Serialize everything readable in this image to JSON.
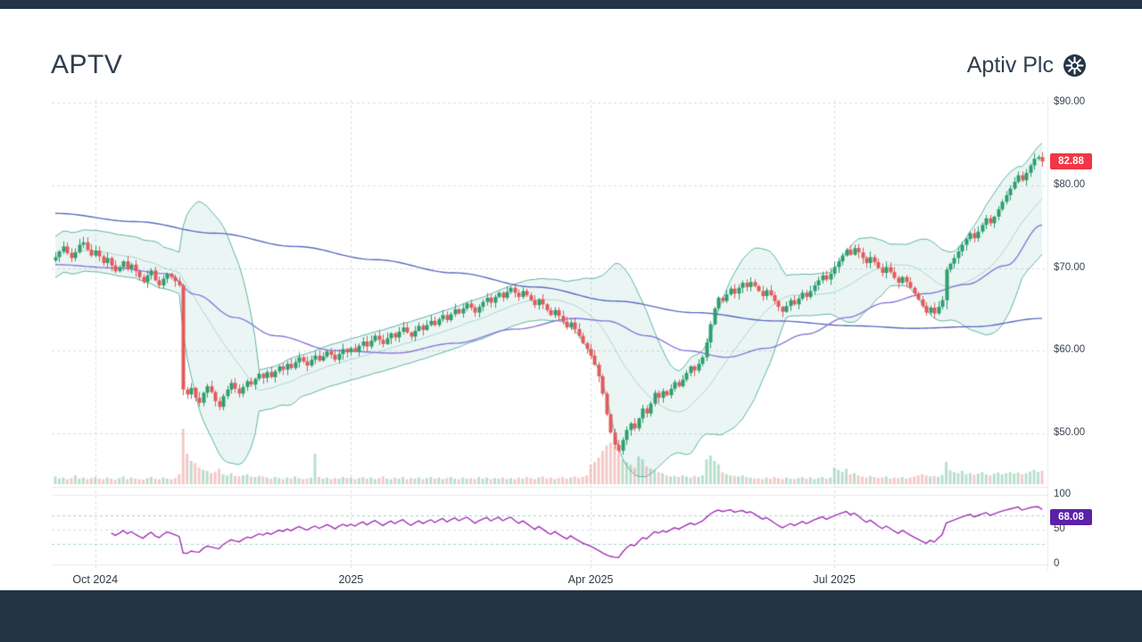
{
  "page": {
    "background": "#ffffff",
    "frame_color": "#243447"
  },
  "header": {
    "ticker": "APTV",
    "company": "Aptiv Plc",
    "logo_icon": "wheel-gear-icon"
  },
  "chart_data": {
    "type": "candlestick",
    "title": "APTV daily candlestick chart with Bollinger Bands, moving averages, volume and RSI",
    "x_axis": {
      "tick_labels": [
        "Oct 2024",
        "2025",
        "Apr 2025",
        "Jul 2025"
      ],
      "tick_indices": [
        10,
        74,
        134,
        195
      ]
    },
    "price_axis": {
      "tick_labels": [
        "$90.00",
        "$80.00",
        "$70.00",
        "$60.00",
        "$50.00"
      ],
      "tick_values": [
        90,
        80,
        70,
        60,
        50
      ],
      "range": [
        46,
        92
      ]
    },
    "rsi_axis": {
      "tick_labels": [
        "100",
        "50",
        "0"
      ],
      "tick_values": [
        100,
        50,
        0
      ]
    },
    "last_price": 82.88,
    "last_price_label": "82.88",
    "rsi_value": 68.08,
    "rsi_label": "68.08",
    "rsi_period": 14,
    "bollinger": {
      "period": 20,
      "stddev": 2
    },
    "closes": [
      71.3,
      72.0,
      72.6,
      71.8,
      71.2,
      71.9,
      72.8,
      73.1,
      72.2,
      71.5,
      72.1,
      71.4,
      70.6,
      71.2,
      70.3,
      69.6,
      70.1,
      70.8,
      69.9,
      70.4,
      69.6,
      68.9,
      68.3,
      69.1,
      69.7,
      68.5,
      67.9,
      68.7,
      69.3,
      68.9,
      68.4,
      67.9,
      55.3,
      54.7,
      55.5,
      54.3,
      53.7,
      54.9,
      55.7,
      55.0,
      53.9,
      53.2,
      54.5,
      55.3,
      56.1,
      55.4,
      54.8,
      55.6,
      56.3,
      55.9,
      56.6,
      57.2,
      56.7,
      57.4,
      56.8,
      57.5,
      58.1,
      57.7,
      58.4,
      57.9,
      58.6,
      59.2,
      58.7,
      58.2,
      58.9,
      59.4,
      58.8,
      59.3,
      59.9,
      59.5,
      58.9,
      59.6,
      60.2,
      59.8,
      60.3,
      59.9,
      60.6,
      61.1,
      60.5,
      61.2,
      61.8,
      61.3,
      60.8,
      61.5,
      62.1,
      61.6,
      62.3,
      62.8,
      62.2,
      61.7,
      62.4,
      63.0,
      62.5,
      63.1,
      63.6,
      63.1,
      63.8,
      64.3,
      63.7,
      64.4,
      65.0,
      64.5,
      65.1,
      65.7,
      65.2,
      64.6,
      65.3,
      65.9,
      66.4,
      65.8,
      66.5,
      67.0,
      66.4,
      67.1,
      67.6,
      67.0,
      66.5,
      67.2,
      66.7,
      66.1,
      65.5,
      66.2,
      65.6,
      64.9,
      64.3,
      64.9,
      64.2,
      63.5,
      62.8,
      63.4,
      62.6,
      61.8,
      60.9,
      60.2,
      59.4,
      58.3,
      56.9,
      54.8,
      52.3,
      50.1,
      48.6,
      47.9,
      49.2,
      50.4,
      51.2,
      50.6,
      51.8,
      53.0,
      52.4,
      53.6,
      54.9,
      54.3,
      55.1,
      54.6,
      55.4,
      56.2,
      55.7,
      56.5,
      57.3,
      58.1,
      57.6,
      58.4,
      59.2,
      61.0,
      63.2,
      65.1,
      66.4,
      66.0,
      66.8,
      67.5,
      66.9,
      67.6,
      68.2,
      67.7,
      68.3,
      67.8,
      67.2,
      66.6,
      67.3,
      66.7,
      66.0,
      65.3,
      64.7,
      65.4,
      66.1,
      65.6,
      66.3,
      67.0,
      66.5,
      67.2,
      67.9,
      68.5,
      69.1,
      68.6,
      69.3,
      70.1,
      70.8,
      71.5,
      72.2,
      71.6,
      72.4,
      71.9,
      71.2,
      70.6,
      71.3,
      70.7,
      70.0,
      69.4,
      70.1,
      69.5,
      68.8,
      68.2,
      68.9,
      68.3,
      67.6,
      66.9,
      66.2,
      65.4,
      64.6,
      65.2,
      64.5,
      65.3,
      66.1,
      69.8,
      70.5,
      71.2,
      72.0,
      72.8,
      73.5,
      74.2,
      73.6,
      74.4,
      75.2,
      76.0,
      75.4,
      76.2,
      77.1,
      78.0,
      78.8,
      79.6,
      80.4,
      81.2,
      80.6,
      81.5,
      82.4,
      83.2,
      83.4,
      82.88
    ],
    "volumes": [
      14,
      10,
      12,
      9,
      11,
      16,
      10,
      12,
      9,
      11,
      13,
      10,
      9,
      12,
      10,
      8,
      11,
      14,
      9,
      12,
      10,
      9,
      8,
      11,
      13,
      10,
      9,
      12,
      10,
      9,
      11,
      18,
      100,
      55,
      42,
      38,
      30,
      26,
      24,
      20,
      22,
      28,
      18,
      16,
      20,
      15,
      14,
      16,
      18,
      14,
      13,
      15,
      14,
      12,
      10,
      13,
      11,
      9,
      12,
      10,
      14,
      11,
      9,
      10,
      12,
      55,
      13,
      10,
      12,
      9,
      11,
      10,
      13,
      11,
      12,
      9,
      11,
      13,
      10,
      12,
      9,
      11,
      14,
      10,
      9,
      12,
      10,
      13,
      9,
      11,
      10,
      12,
      9,
      11,
      13,
      10,
      12,
      9,
      11,
      13,
      10,
      9,
      12,
      10,
      11,
      9,
      13,
      10,
      12,
      9,
      11,
      10,
      12,
      9,
      11,
      9,
      12,
      10,
      13,
      11,
      9,
      12,
      14,
      10,
      12,
      9,
      11,
      13,
      10,
      12,
      14,
      11,
      13,
      16,
      35,
      40,
      48,
      60,
      70,
      75,
      68,
      55,
      45,
      40,
      35,
      30,
      50,
      45,
      32,
      28,
      26,
      22,
      20,
      16,
      14,
      15,
      13,
      16,
      14,
      12,
      15,
      13,
      16,
      45,
      52,
      42,
      36,
      22,
      18,
      16,
      15,
      14,
      16,
      13,
      12,
      10,
      11,
      9,
      12,
      10,
      13,
      11,
      9,
      12,
      10,
      9,
      11,
      13,
      10,
      12,
      9,
      11,
      13,
      10,
      12,
      30,
      26,
      22,
      28,
      18,
      20,
      16,
      14,
      12,
      15,
      13,
      11,
      12,
      14,
      10,
      12,
      11,
      13,
      10,
      12,
      14,
      16,
      18,
      16,
      14,
      15,
      13,
      17,
      40,
      25,
      22,
      20,
      24,
      18,
      20,
      17,
      19,
      22,
      18,
      16,
      19,
      21,
      18,
      20,
      22,
      19,
      21,
      18,
      20,
      23,
      26,
      22,
      24
    ],
    "ma_fast_anchors": [
      [
        0,
        70.4
      ],
      [
        15,
        70.0
      ],
      [
        28,
        69.3
      ],
      [
        35,
        66.8
      ],
      [
        45,
        64.0
      ],
      [
        55,
        61.8
      ],
      [
        70,
        60.0
      ],
      [
        85,
        59.7
      ],
      [
        100,
        60.9
      ],
      [
        115,
        62.6
      ],
      [
        130,
        63.9
      ],
      [
        138,
        63.6
      ],
      [
        148,
        61.8
      ],
      [
        158,
        60.0
      ],
      [
        168,
        59.2
      ],
      [
        178,
        60.3
      ],
      [
        188,
        62.0
      ],
      [
        198,
        64.0
      ],
      [
        208,
        65.8
      ],
      [
        218,
        66.9
      ],
      [
        228,
        68.0
      ],
      [
        238,
        70.3
      ],
      [
        247,
        75.2
      ]
    ],
    "ma_slow_anchors": [
      [
        0,
        76.6
      ],
      [
        20,
        75.6
      ],
      [
        40,
        74.2
      ],
      [
        60,
        72.6
      ],
      [
        80,
        71.0
      ],
      [
        100,
        69.4
      ],
      [
        120,
        67.7
      ],
      [
        140,
        66.0
      ],
      [
        160,
        64.6
      ],
      [
        180,
        63.6
      ],
      [
        200,
        63.0
      ],
      [
        215,
        62.7
      ],
      [
        230,
        62.9
      ],
      [
        247,
        63.9
      ]
    ],
    "colors": {
      "up": "#2f9e6e",
      "down": "#e25b5b",
      "volume_up": "rgba(70,170,125,0.38)",
      "volume_down": "rgba(230,120,120,0.40)",
      "band_fill": "rgba(45,160,145,0.10)",
      "band_line": "#5fb4a4",
      "band_mid": "rgba(95,180,165,0.45)",
      "ma_fast": "#8b79d9",
      "ma_slow": "#5c6bc0",
      "rsi_line": "#a232b4",
      "rsi_levels": "rgba(80,170,155,0.50)",
      "grid": "#d9dee4",
      "separator": "#e7eaee",
      "price_badge": "#f23645",
      "rsi_badge": "#5b21a8"
    }
  }
}
